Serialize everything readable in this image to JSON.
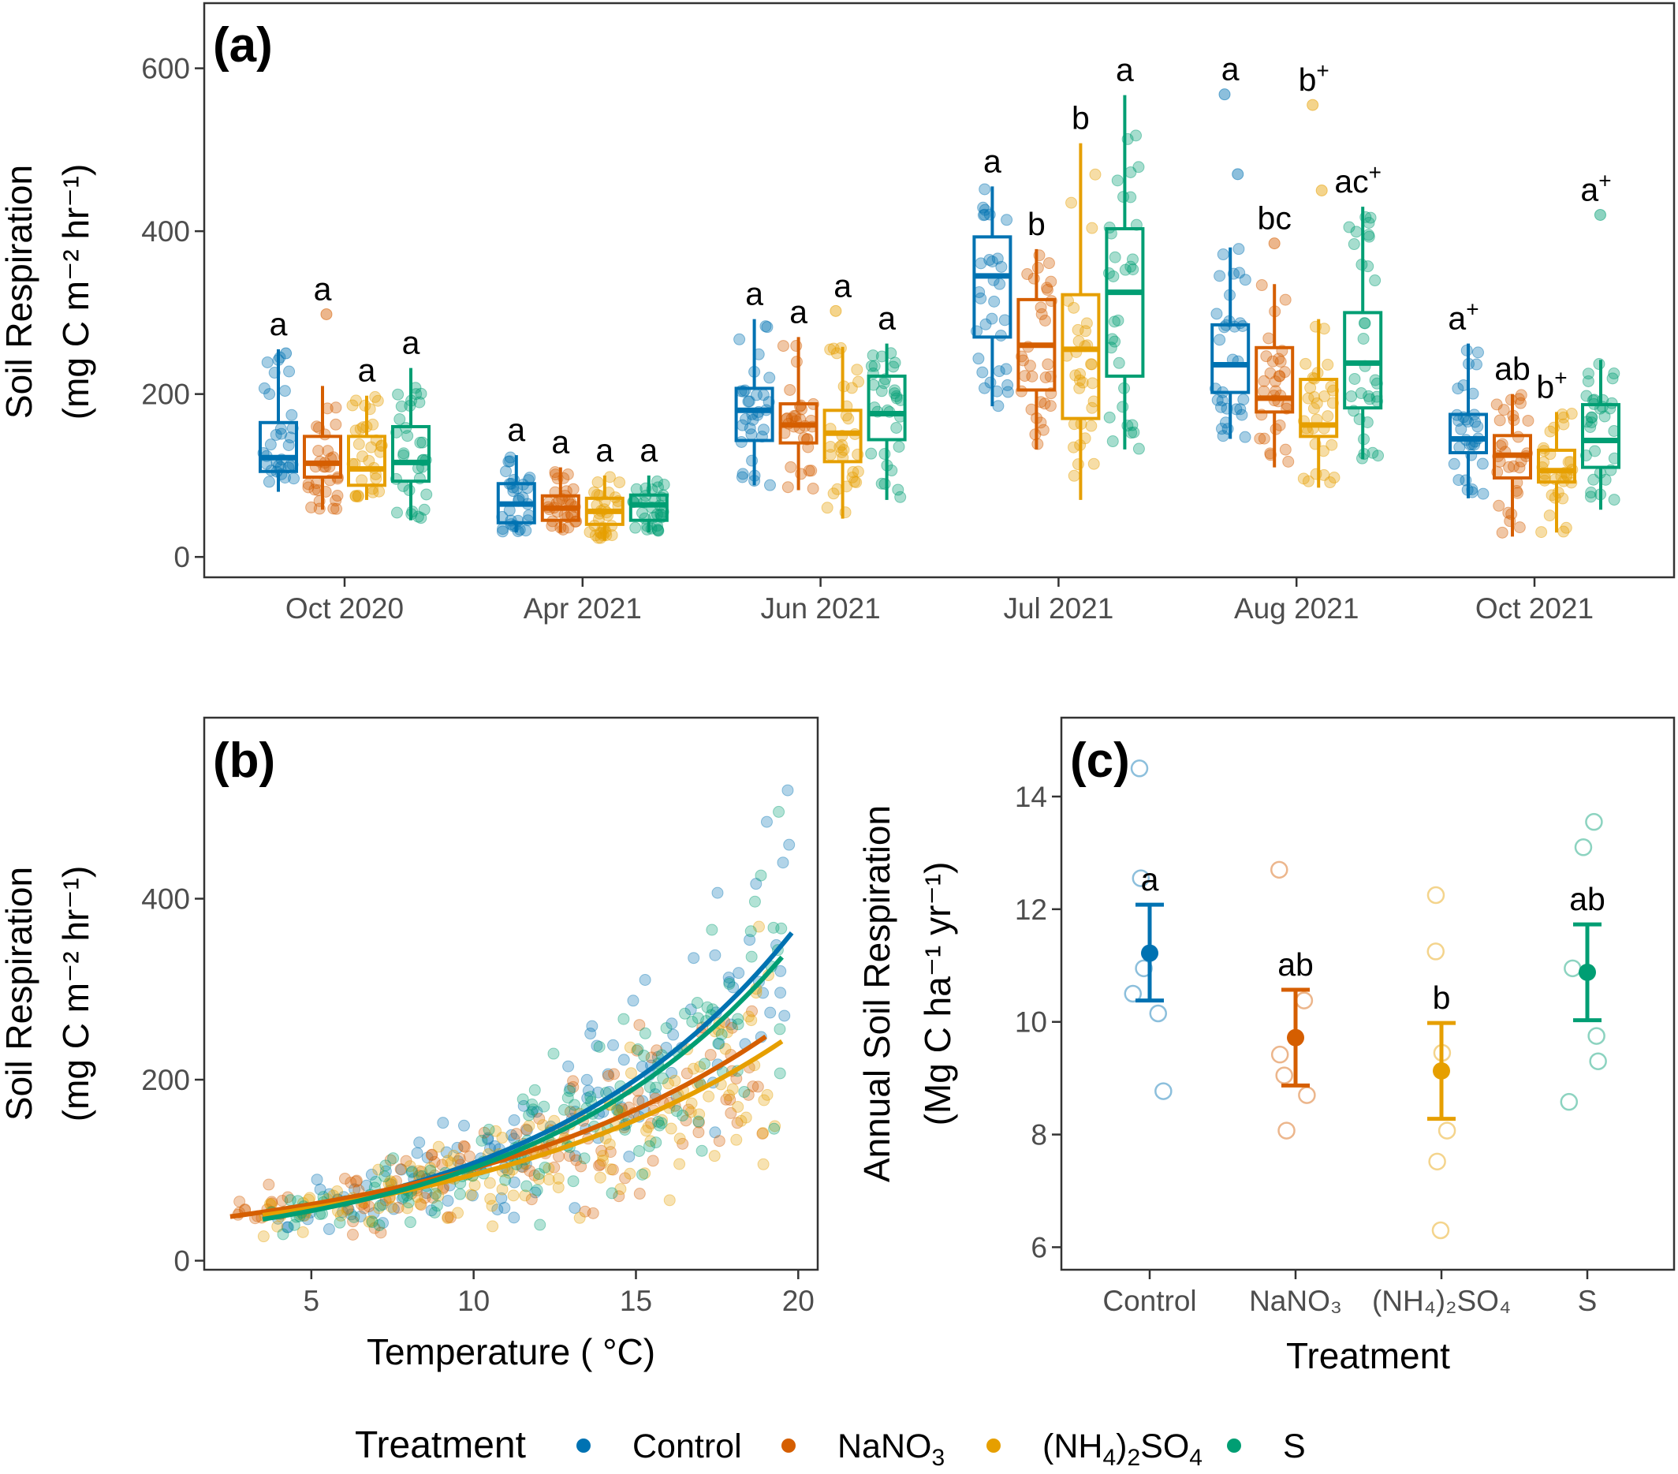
{
  "colors": {
    "Control": "#0072B2",
    "NaNO3": "#D55E00",
    "(NH4)2SO4": "#E69F00",
    "S": "#009E73"
  },
  "legend": {
    "title": "Treatment",
    "items": [
      {
        "key": "Control",
        "label": "Control"
      },
      {
        "key": "NaNO3",
        "label": "NaNO",
        "sub": "3"
      },
      {
        "key": "(NH4)2SO4",
        "label": "(NH",
        "sub": "4",
        "label2": ")",
        "sub2": "2",
        "label3": "SO",
        "sub3": "4"
      },
      {
        "key": "S",
        "label": "S"
      }
    ]
  },
  "chart_data": [
    {
      "panel": "(a)",
      "type": "box",
      "ylabel_line1": "Soil Respiration",
      "ylabel_line2": "(mg C m⁻² hr⁻¹)",
      "ylim": [
        -25,
        680
      ],
      "yticks": [
        0,
        200,
        400,
        600
      ],
      "categories": [
        "Oct 2020",
        "Apr 2021",
        "Jun 2021",
        "Jul 2021",
        "Aug 2021",
        "Oct 2021"
      ],
      "treatments": [
        "Control",
        "NaNO3",
        "(NH4)2SO4",
        "S"
      ],
      "boxes": [
        [
          {
            "q1": 105,
            "med": 122,
            "q3": 165,
            "lo": 80,
            "hi": 255,
            "sig": "a"
          },
          {
            "q1": 98,
            "med": 115,
            "q3": 148,
            "lo": 58,
            "hi": 210,
            "sig": "a"
          },
          {
            "q1": 88,
            "med": 108,
            "q3": 148,
            "lo": 70,
            "hi": 198,
            "sig": "a"
          },
          {
            "q1": 93,
            "med": 116,
            "q3": 160,
            "lo": 45,
            "hi": 232,
            "sig": "a"
          }
        ],
        [
          {
            "q1": 42,
            "med": 65,
            "q3": 90,
            "lo": 30,
            "hi": 125,
            "sig": "a"
          },
          {
            "q1": 45,
            "med": 60,
            "q3": 75,
            "lo": 30,
            "hi": 110,
            "sig": "a"
          },
          {
            "q1": 40,
            "med": 56,
            "q3": 72,
            "lo": 20,
            "hi": 100,
            "sig": "a"
          },
          {
            "q1": 45,
            "med": 64,
            "q3": 76,
            "lo": 30,
            "hi": 100,
            "sig": "a"
          }
        ],
        [
          {
            "q1": 143,
            "med": 180,
            "q3": 207,
            "lo": 88,
            "hi": 292,
            "sig": "a"
          },
          {
            "q1": 140,
            "med": 162,
            "q3": 188,
            "lo": 82,
            "hi": 270,
            "sig": "a"
          },
          {
            "q1": 117,
            "med": 152,
            "q3": 180,
            "lo": 47,
            "hi": 258,
            "sig": "a"
          },
          {
            "q1": 144,
            "med": 176,
            "q3": 222,
            "lo": 70,
            "hi": 262,
            "sig": "a"
          }
        ],
        [
          {
            "q1": 270,
            "med": 345,
            "q3": 393,
            "lo": 185,
            "hi": 455,
            "sig": "a"
          },
          {
            "q1": 205,
            "med": 260,
            "q3": 316,
            "lo": 132,
            "hi": 378,
            "sig": "b"
          },
          {
            "q1": 170,
            "med": 255,
            "q3": 322,
            "lo": 70,
            "hi": 508,
            "sig": "b"
          },
          {
            "q1": 222,
            "med": 325,
            "q3": 403,
            "lo": 132,
            "hi": 567,
            "sig": "a"
          }
        ],
        [
          {
            "q1": 202,
            "med": 236,
            "q3": 285,
            "lo": 145,
            "hi": 380,
            "sig": "a"
          },
          {
            "q1": 178,
            "med": 195,
            "q3": 257,
            "lo": 110,
            "hi": 335,
            "sig": "bc"
          },
          {
            "q1": 148,
            "med": 162,
            "q3": 218,
            "lo": 85,
            "hi": 292,
            "sig": "b+"
          },
          {
            "q1": 183,
            "med": 238,
            "q3": 300,
            "lo": 120,
            "hi": 430,
            "sig": "ac+"
          }
        ],
        [
          {
            "q1": 128,
            "med": 145,
            "q3": 175,
            "lo": 72,
            "hi": 262,
            "sig": "a+"
          },
          {
            "q1": 97,
            "med": 125,
            "q3": 149,
            "lo": 25,
            "hi": 200,
            "sig": "ab"
          },
          {
            "q1": 92,
            "med": 106,
            "q3": 131,
            "lo": 30,
            "hi": 178,
            "sig": "b+"
          },
          {
            "q1": 110,
            "med": 143,
            "q3": 187,
            "lo": 58,
            "hi": 242,
            "sig": "a+"
          }
        ]
      ],
      "outliers": [
        [
          [
            [
              250
            ]
          ],
          [
            [
              298
            ]
          ],
          [
            []
          ],
          [
            []
          ]
        ],
        [
          [
            []
          ],
          [
            []
          ],
          [
            []
          ],
          [
            []
          ]
        ],
        [
          [
            []
          ],
          [
            []
          ],
          [
            [
              302
            ]
          ],
          [
            []
          ]
        ],
        [
          [
            []
          ],
          [
            []
          ],
          [
            []
          ],
          [
            []
          ]
        ],
        [
          [
            [
              568,
              470
            ]
          ],
          [
            [
              385
            ]
          ],
          [
            [
              555,
              450
            ]
          ],
          [
            []
          ]
        ],
        [
          [
            []
          ],
          [
            []
          ],
          [
            []
          ],
          [
            [
              420
            ]
          ]
        ]
      ]
    },
    {
      "panel": "(b)",
      "type": "scatter",
      "xlabel": "Temperature ( °C)",
      "ylabel_line1": "Soil Respiration",
      "ylabel_line2": "(mg C m⁻² hr⁻¹)",
      "xlim": [
        1.7,
        20.6
      ],
      "ylim": [
        -10,
        600
      ],
      "xticks": [
        5,
        10,
        15,
        20
      ],
      "yticks": [
        0,
        200,
        400
      ],
      "fits": [
        {
          "treatment": "Control",
          "a": 31.4,
          "b": 0.1235,
          "xrange": [
            3.5,
            19.8
          ]
        },
        {
          "treatment": "NaNO3",
          "a": 38.1,
          "b": 0.0985,
          "xrange": [
            2.5,
            19.0
          ]
        },
        {
          "treatment": "(NH4)2SO4",
          "a": 35.5,
          "b": 0.0985,
          "xrange": [
            3.5,
            19.5
          ]
        },
        {
          "treatment": "S",
          "a": 29.6,
          "b": 0.1245,
          "xrange": [
            3.5,
            19.5
          ]
        }
      ]
    },
    {
      "panel": "(c)",
      "type": "pointrange",
      "xlabel": "Treatment",
      "ylabel_line1": "Annual Soil Respiration",
      "ylabel_line2": "(Mg C ha⁻¹ yr⁻¹)",
      "ylim": [
        5.6,
        15.4
      ],
      "yticks": [
        6,
        8,
        10,
        12,
        14
      ],
      "categories": [
        "Control",
        "NaNO3",
        "(NH4)2SO4",
        "S"
      ],
      "category_labels": [
        "Control",
        "NaNO₃",
        "(NH₄)₂SO₄",
        "S"
      ],
      "means": [
        11.22,
        9.72,
        9.13,
        10.88
      ],
      "lower": [
        10.38,
        8.87,
        8.28,
        10.03
      ],
      "upper": [
        12.08,
        10.57,
        9.98,
        11.73
      ],
      "sig": [
        "a",
        "ab",
        "b",
        "ab"
      ],
      "replicates": [
        [
          14.5,
          12.55,
          10.95,
          10.5,
          10.15,
          8.77
        ],
        [
          12.7,
          10.38,
          9.42,
          9.05,
          8.7,
          8.07
        ],
        [
          12.25,
          11.25,
          9.45,
          8.07,
          7.52,
          6.3
        ],
        [
          13.55,
          13.1,
          10.95,
          9.75,
          9.3,
          8.58
        ]
      ]
    }
  ]
}
